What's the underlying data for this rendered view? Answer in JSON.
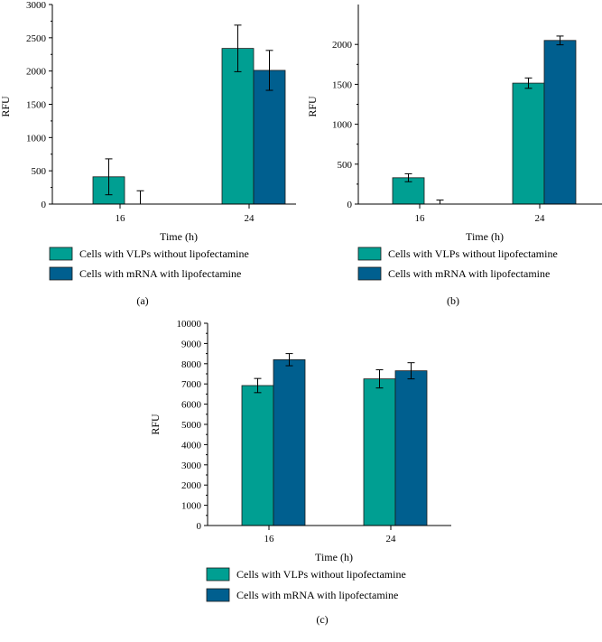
{
  "colors": {
    "vlp": "#009f92",
    "mrna": "#005f8f",
    "axis": "#000000"
  },
  "legend": {
    "vlp_label": "Cells with VLPs without lipofectamine",
    "mrna_label": "Cells with mRNA with lipofectamine"
  },
  "chart_data": [
    {
      "type": "bar",
      "panel_label": "(a)",
      "xlabel": "Time (h)",
      "ylabel": "RFU",
      "categories": [
        "16",
        "24"
      ],
      "ylim": [
        0,
        3000
      ],
      "yticks": [
        0,
        500,
        1000,
        1500,
        2000,
        2500,
        3000
      ],
      "series": [
        {
          "name": "Cells with VLPs without lipofectamine",
          "values": [
            410,
            2340
          ],
          "errors": [
            270,
            350
          ]
        },
        {
          "name": "Cells with mRNA with lipofectamine",
          "values": [
            0,
            2010
          ],
          "errors": [
            200,
            300
          ]
        }
      ]
    },
    {
      "type": "bar",
      "panel_label": "(b)",
      "xlabel": "Time (h)",
      "ylabel": "RFU",
      "categories": [
        "16",
        "24"
      ],
      "ylim": [
        0,
        2500
      ],
      "yticks": [
        0,
        500,
        1000,
        1500,
        2000
      ],
      "series": [
        {
          "name": "Cells with VLPs without lipofectamine",
          "values": [
            330,
            1515
          ],
          "errors": [
            50,
            65
          ]
        },
        {
          "name": "Cells with mRNA with lipofectamine",
          "values": [
            0,
            2050
          ],
          "errors": [
            50,
            55
          ]
        }
      ]
    },
    {
      "type": "bar",
      "panel_label": "(c)",
      "xlabel": "Time (h)",
      "ylabel": "RFU",
      "categories": [
        "16",
        "24"
      ],
      "ylim": [
        0,
        10000
      ],
      "yticks": [
        0,
        1000,
        2000,
        3000,
        4000,
        5000,
        6000,
        7000,
        8000,
        9000,
        10000
      ],
      "series": [
        {
          "name": "Cells with VLPs without lipofectamine",
          "values": [
            6920,
            7250
          ],
          "errors": [
            350,
            450
          ]
        },
        {
          "name": "Cells with mRNA with lipofectamine",
          "values": [
            8200,
            7650
          ],
          "errors": [
            300,
            400
          ]
        }
      ]
    }
  ]
}
